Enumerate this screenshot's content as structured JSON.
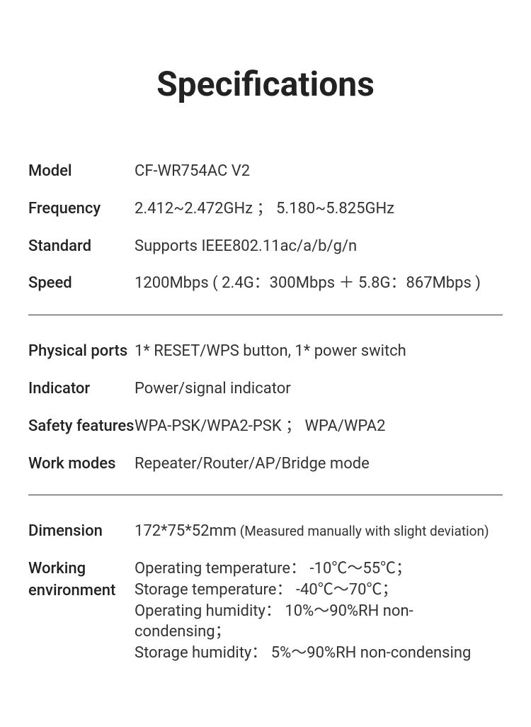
{
  "title": "Specifications",
  "sections": [
    {
      "rows": [
        {
          "label": "Model",
          "value": "CF-WR754AC V2"
        },
        {
          "label": "Frequency",
          "value": "2.412~2.472GHz  ；   5.180~5.825GHz"
        },
        {
          "label": "Standard",
          "value": "Supports IEEE802.11ac/a/b/g/n"
        },
        {
          "label": "Speed",
          "value": "1200Mbps ( 2.4G：300Mbps  ＋ 5.8G：867Mbps )"
        }
      ]
    },
    {
      "rows": [
        {
          "label": "Physical ports",
          "value": "1* RESET/WPS button, 1* power switch"
        },
        {
          "label": "Indicator",
          "value": "Power/signal indicator"
        },
        {
          "label": "Safety features",
          "value": "WPA-PSK/WPA2-PSK    ；    WPA/WPA2"
        },
        {
          "label": "Work modes",
          "value": "Repeater/Router/AP/Bridge mode"
        }
      ]
    },
    {
      "rows": [
        {
          "label": "Dimension",
          "value": "172*75*52mm",
          "note": " (Measured manually with slight deviation)"
        },
        {
          "label": "Working environment",
          "value_html": "Operating temperature： -10℃～55℃；<br>Storage temperature： -40℃～70℃；<br>Operating humidity： 10%～90%RH non-condensing；<br>Storage humidity： 5%～90%RH non-condensing"
        }
      ]
    }
  ],
  "style": {
    "background_color": "#ffffff",
    "text_color": "#333333",
    "title_color": "#222222",
    "title_fontsize": 48,
    "label_fontsize": 22,
    "value_fontsize": 22,
    "note_fontsize": 19,
    "divider_color": "#333333",
    "label_col_width": 150
  }
}
